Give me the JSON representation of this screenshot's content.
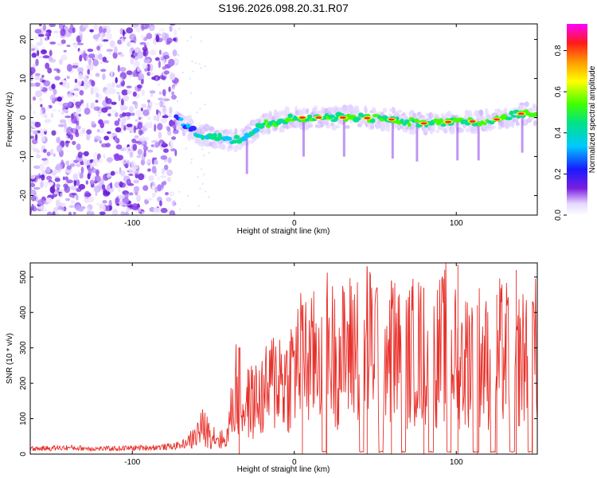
{
  "figure_title": "S196.2026.098.20.31.R07",
  "colors": {
    "snr_line": "#e8302a",
    "axis": "#000000",
    "background": "#ffffff"
  },
  "chart_data": [
    {
      "type": "heatmap",
      "title": "S196.2026.098.20.31.R07",
      "xlabel": "Height of straight line (km)",
      "ylabel": "Frequency (Hz)",
      "xlim": [
        -163,
        150
      ],
      "ylim": [
        -25,
        24
      ],
      "xticks": [
        -100,
        0,
        100
      ],
      "yticks": [
        -20,
        -10,
        0,
        10,
        20
      ],
      "noise_region_x": [
        -163,
        -73
      ],
      "ridge": {
        "x": [
          -73,
          -65,
          -55,
          -45,
          -37,
          -28,
          -20,
          -10,
          0,
          20,
          40,
          60,
          80,
          100,
          120,
          140,
          150
        ],
        "freq": [
          0,
          -3,
          -5,
          -5,
          -6,
          -4,
          -2,
          -1,
          0,
          0,
          0,
          -0.5,
          -1.5,
          -1,
          -1,
          1,
          1
        ]
      },
      "colorbar": {
        "label": "Normalized spectral amplitude",
        "range": [
          0,
          0.93
        ],
        "ticks": [
          0.0,
          0.2,
          0.4,
          0.6,
          0.8
        ],
        "tick_labels": [
          "0.0",
          "0.2",
          "0.4",
          "0.6",
          "0.8"
        ]
      }
    },
    {
      "type": "line",
      "xlabel": "Height of straight line (km)",
      "ylabel": "SNR (10 * v/v)",
      "xlim": [
        -163,
        150
      ],
      "ylim": [
        0,
        540
      ],
      "xticks": [
        -100,
        0,
        100
      ],
      "yticks": [
        0,
        100,
        200,
        300,
        400,
        500
      ],
      "series": [
        {
          "name": "SNR",
          "x": [
            -163,
            -140,
            -120,
            -100,
            -80,
            -70,
            -62,
            -57,
            -52,
            -47,
            -42,
            -36,
            -34,
            -30,
            -25,
            -20,
            -15,
            -10,
            -5,
            0,
            5,
            10,
            15,
            20,
            25,
            30,
            35,
            40,
            45,
            50,
            55,
            60,
            65,
            70,
            75,
            80,
            85,
            90,
            95,
            100,
            105,
            110,
            115,
            120,
            125,
            130,
            135,
            140,
            145,
            150
          ],
          "y": [
            15,
            18,
            15,
            17,
            20,
            25,
            45,
            75,
            60,
            45,
            35,
            190,
            120,
            140,
            150,
            160,
            190,
            230,
            200,
            250,
            280,
            250,
            300,
            320,
            270,
            280,
            300,
            320,
            290,
            330,
            310,
            300,
            280,
            270,
            300,
            280,
            260,
            290,
            320,
            270,
            260,
            300,
            280,
            250,
            290,
            280,
            300,
            260,
            310,
            280
          ],
          "spikes": [
            {
              "x": -34,
              "y": 300
            },
            {
              "x": 5,
              "y": 420
            },
            {
              "x": 20,
              "y": 440
            },
            {
              "x": 45,
              "y": 530
            },
            {
              "x": 60,
              "y": 490
            },
            {
              "x": 80,
              "y": 470
            },
            {
              "x": 101,
              "y": 535
            },
            {
              "x": 113,
              "y": 420
            },
            {
              "x": 125,
              "y": 450
            },
            {
              "x": 137,
              "y": 520
            },
            {
              "x": 147,
              "y": 430
            }
          ],
          "dropouts": [
            [
              17,
              20
            ],
            [
              40,
              43
            ],
            [
              52,
              55
            ],
            [
              66,
              69
            ],
            [
              83,
              86
            ],
            [
              94,
              97
            ],
            [
              110,
              114
            ],
            [
              121,
              124
            ],
            [
              133,
              136
            ],
            [
              144,
              147
            ]
          ]
        }
      ]
    }
  ]
}
